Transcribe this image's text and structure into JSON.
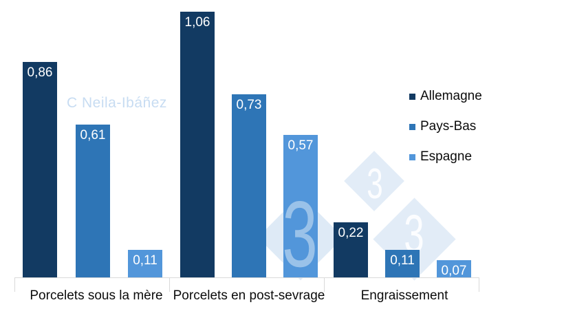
{
  "colors": {
    "allemagne": "#123A62",
    "pays_bas": "#2E75B6",
    "espagne": "#5296DA",
    "axis": "#D9D9D9",
    "watermark_diamond": "#E2ECF7",
    "watermark_credit_text": "#C7DCF2",
    "value_label_text": "#FFFFFF"
  },
  "chart_data": {
    "type": "bar",
    "categories": [
      "Porcelets sous la mère",
      "Porcelets en post-sevrage",
      "Engraissement"
    ],
    "series": [
      {
        "name": "Allemagne",
        "color": "#123A62",
        "values": [
          0.86,
          1.06,
          0.22
        ],
        "labels": [
          "0,86",
          "1,06",
          "0,22"
        ]
      },
      {
        "name": "Pays-Bas",
        "color": "#2E75B6",
        "values": [
          0.61,
          0.73,
          0.11
        ],
        "labels": [
          "0,61",
          "0,73",
          "0,11"
        ]
      },
      {
        "name": "Espagne",
        "color": "#5296DA",
        "values": [
          0.11,
          0.57,
          0.07
        ],
        "labels": [
          "0,11",
          "0,57",
          "0,07"
        ]
      }
    ],
    "title": "",
    "xlabel": "",
    "ylabel": "",
    "ylim": [
      0,
      1.06
    ],
    "grid": false,
    "y_axis_visible": false,
    "legend_position": "right",
    "value_format": "comma-decimal",
    "value_labels_inside_bars": true
  },
  "watermarks": {
    "credit": "C Neila-Ibáñez",
    "threes": [
      "3",
      "3",
      "3"
    ]
  }
}
